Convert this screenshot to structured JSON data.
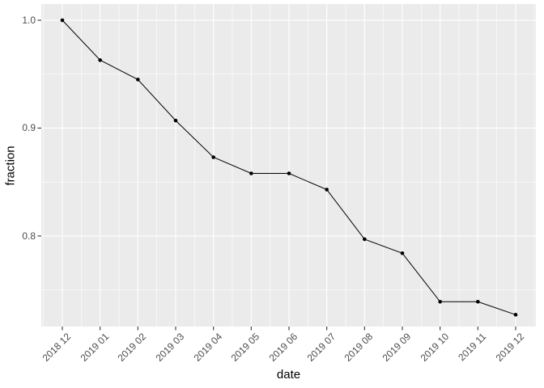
{
  "figure": {
    "background": "#FFFFFF",
    "panel_background": "#EBEBEB",
    "grid_color": "#FFFFFF",
    "line_color": "#000000",
    "point_color": "#000000",
    "tick_mark_color": "#333333",
    "tick_label_color": "#4D4D4D",
    "axis_title_color": "#000000"
  },
  "chart_data": {
    "type": "line",
    "title": "",
    "xlabel": "date",
    "ylabel": "fraction",
    "categories": [
      "2018 12",
      "2019 01",
      "2019 02",
      "2019 03",
      "2019 04",
      "2019 05",
      "2019 06",
      "2019 07",
      "2019 08",
      "2019 09",
      "2019 10",
      "2019 11",
      "2019 12"
    ],
    "values": [
      1.0,
      0.963,
      0.945,
      0.907,
      0.873,
      0.858,
      0.858,
      0.843,
      0.797,
      0.784,
      0.739,
      0.739,
      0.727
    ],
    "series_name": "fraction",
    "y_tick_labels": [
      "1.0",
      "0.9",
      "0.8"
    ],
    "y_tick_values": [
      1.0,
      0.9,
      0.8
    ],
    "y_minor_values": [
      0.95,
      0.85,
      0.75
    ],
    "ylim": [
      0.716,
      1.015
    ],
    "grid": "major+minor",
    "legend": "none",
    "marker": "point",
    "x_label_rotation_deg": 45
  }
}
